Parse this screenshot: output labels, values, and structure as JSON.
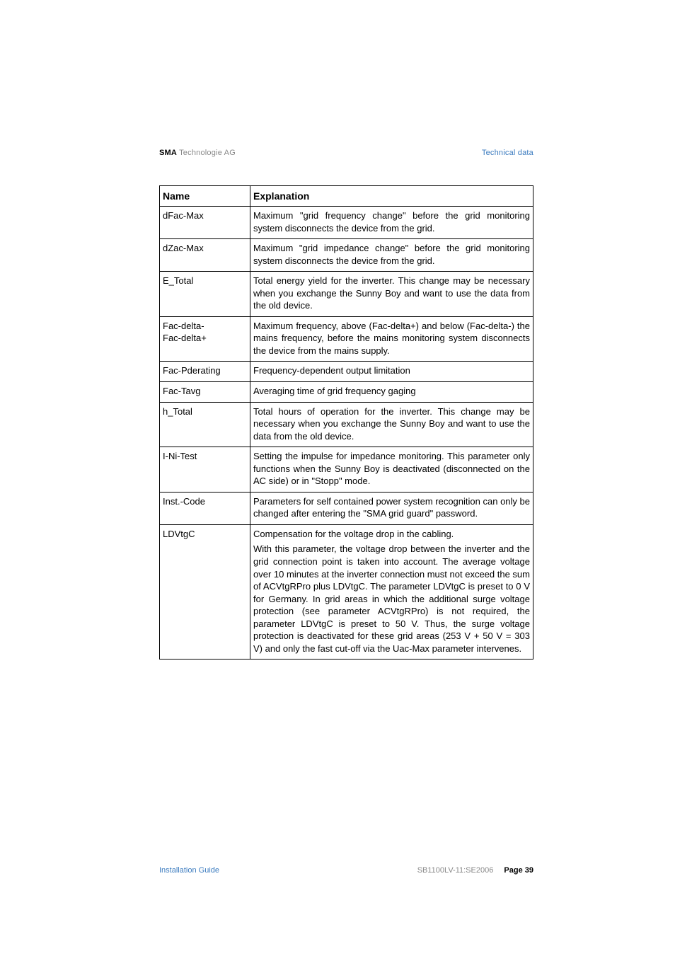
{
  "header": {
    "brand_bold": "SMA",
    "brand_light": " Technologie AG",
    "section": "Technical data"
  },
  "table": {
    "col_name": "Name",
    "col_expl": "Explanation",
    "rows": [
      {
        "name": "dFac-Max",
        "expl": [
          "Maximum \"grid frequency change\" before the grid monitoring system disconnects the device from the grid."
        ]
      },
      {
        "name": "dZac-Max",
        "expl": [
          "Maximum \"grid impedance change\" before the grid monitoring system disconnects the device from the grid."
        ]
      },
      {
        "name": "E_Total",
        "expl": [
          "Total energy yield for the inverter. This change may be necessary when you exchange the Sunny Boy and want to use the data from the old device."
        ]
      },
      {
        "name": "Fac-delta-\nFac-delta+",
        "expl": [
          "Maximum frequency, above (Fac-delta+) and below (Fac-delta-) the mains frequency, before the mains monitoring system disconnects the device from the mains supply."
        ]
      },
      {
        "name": "Fac-Pderating",
        "expl": [
          "Frequency-dependent output limitation"
        ]
      },
      {
        "name": "Fac-Tavg",
        "expl": [
          "Averaging time of grid frequency gaging"
        ]
      },
      {
        "name": "h_Total",
        "expl": [
          "Total hours of operation for the inverter. This change may be necessary when you exchange the Sunny Boy and want to use the data from the old device."
        ]
      },
      {
        "name": "I-Ni-Test",
        "expl": [
          "Setting the impulse for impedance monitoring. This parameter only functions when the Sunny Boy is deactivated (disconnected on the AC side) or in \"Stopp\" mode."
        ]
      },
      {
        "name": "Inst.-Code",
        "expl": [
          "Parameters for self contained power system recognition can only be changed after entering the \"SMA grid guard\" password."
        ]
      },
      {
        "name": "LDVtgC",
        "expl": [
          "Compensation for the voltage drop in the cabling.",
          "With this parameter, the voltage drop between the inverter and the grid connection point is taken into account. The average voltage over 10 minutes at the inverter connection must not exceed the sum of ACVtgRPro plus LDVtgC. The parameter LDVtgC is preset to 0 V for Germany.  In grid areas in which the additional surge voltage protection (see parameter ACVtgRPro) is not required, the parameter LDVtgC is preset to 50 V. Thus, the surge voltage protection is deactivated for these grid areas (253 V + 50 V = 303 V) and only the fast cut-off via the Uac-Max parameter intervenes."
        ]
      }
    ]
  },
  "footer": {
    "left": "Installation Guide",
    "doc": "SB1100LV-11:SE2006",
    "page_label": "Page 39"
  },
  "colors": {
    "link_blue": "#3b7bbf",
    "gray": "#888888"
  }
}
